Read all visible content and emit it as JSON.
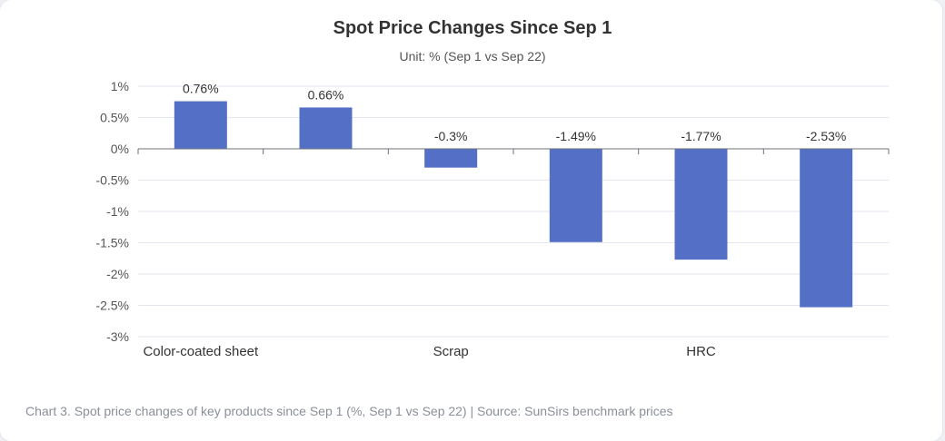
{
  "chart_data": {
    "type": "bar",
    "title": "Spot Price Changes Since Sep 1",
    "subtitle": "Unit: % (Sep 1 vs Sep 22)",
    "categories": [
      "Color-coated sheet",
      "",
      "Scrap",
      "",
      "HRC",
      ""
    ],
    "values": [
      0.76,
      0.66,
      -0.3,
      -1.49,
      -1.77,
      -2.53
    ],
    "data_labels": [
      "0.76%",
      "0.66%",
      "-0.3%",
      "-1.49%",
      "-1.77%",
      "-2.53%"
    ],
    "yticks": [
      1,
      0.5,
      0,
      -0.5,
      -1,
      -1.5,
      -2,
      -2.5,
      -3
    ],
    "ytick_labels": [
      "1%",
      "0.5%",
      "0%",
      "-0.5%",
      "-1%",
      "-1.5%",
      "-2%",
      "-2.5%",
      "-3%"
    ],
    "ylim": [
      -3,
      1
    ],
    "grid": true,
    "bar_color": "#5470c6"
  },
  "caption": "Chart 3. Spot price changes of key products since Sep 1 (%, Sep 1 vs Sep 22)  |  Source: SunSirs benchmark prices"
}
